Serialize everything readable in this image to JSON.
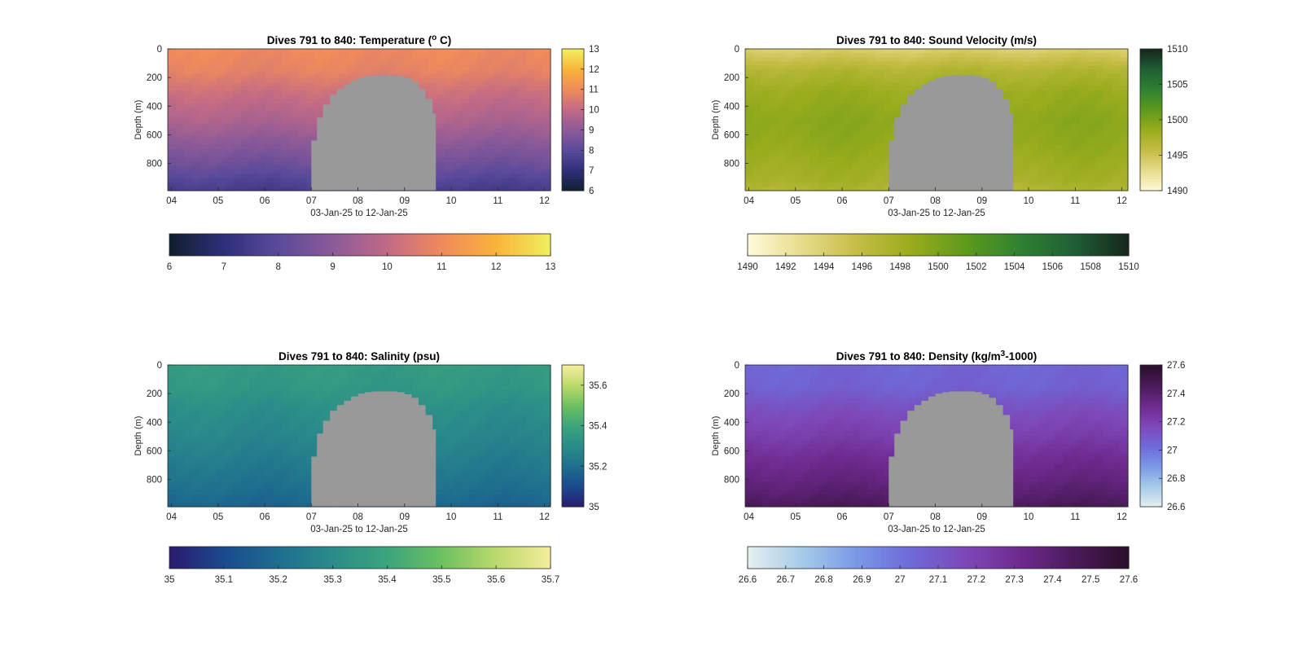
{
  "figure": {
    "background": "#ffffff",
    "mask_color": "#999999"
  },
  "chart_data": [
    {
      "type": "heatmap",
      "title_pre": "Dives 791 to 840: Temperature (",
      "title_sup": "o",
      "title_post": " C)",
      "xlabel": "03-Jan-25 to 12-Jan-25",
      "ylabel": "Depth (m)",
      "x_ticks": [
        "04",
        "05",
        "06",
        "07",
        "08",
        "09",
        "10",
        "11",
        "12"
      ],
      "x_tick_values": [
        4,
        5,
        6,
        7,
        8,
        9,
        10,
        11,
        12
      ],
      "xlim": [
        3.92,
        12.13
      ],
      "y_ticks": [
        "0",
        "200",
        "400",
        "600",
        "800"
      ],
      "y_tick_values": [
        0,
        200,
        400,
        600,
        800
      ],
      "ylim": [
        0,
        990
      ],
      "colorbar": {
        "colors": [
          "#0f1f2e",
          "#2f2f7a",
          "#5a4a9a",
          "#8c5a98",
          "#c16a86",
          "#ef8a5c",
          "#f9b33a",
          "#f0f060"
        ],
        "range": [
          6,
          13
        ],
        "vertical_ticks": [
          "6",
          "7",
          "8",
          "9",
          "10",
          "11",
          "12",
          "13"
        ],
        "vertical_values": [
          6,
          7,
          8,
          9,
          10,
          11,
          12,
          13
        ],
        "horizontal_ticks": [
          "6",
          "7",
          "8",
          "9",
          "10",
          "11",
          "12",
          "13"
        ],
        "horizontal_values": [
          6,
          7,
          8,
          9,
          10,
          11,
          12,
          13
        ]
      },
      "profile": {
        "depths": [
          0,
          150,
          300,
          500,
          650,
          800,
          920,
          990
        ],
        "values": [
          11.0,
          10.8,
          10.2,
          9.6,
          9.0,
          8.4,
          7.8,
          7.5
        ]
      },
      "no_data_region": {
        "x": [
          7.0,
          7.12,
          7.25,
          7.4,
          7.55,
          7.7,
          7.85,
          8.0,
          8.15,
          8.3,
          8.5,
          8.7,
          8.85,
          9.0,
          9.15,
          9.3,
          9.45,
          9.6,
          9.67
        ],
        "top_depth": [
          640,
          480,
          390,
          320,
          280,
          250,
          220,
          200,
          190,
          185,
          185,
          185,
          190,
          205,
          230,
          280,
          350,
          450,
          580
        ]
      }
    },
    {
      "type": "heatmap",
      "title_pre": "Dives 791 to 840: Sound Velocity (m/s)",
      "title_sup": "",
      "title_post": "",
      "xlabel": "03-Jan-25 to 12-Jan-25",
      "ylabel": "Depth (m)",
      "x_ticks": [
        "04",
        "05",
        "06",
        "07",
        "08",
        "09",
        "10",
        "11",
        "12"
      ],
      "x_tick_values": [
        4,
        5,
        6,
        7,
        8,
        9,
        10,
        11,
        12
      ],
      "xlim": [
        3.92,
        12.13
      ],
      "y_ticks": [
        "0",
        "200",
        "400",
        "600",
        "800"
      ],
      "y_tick_values": [
        0,
        200,
        400,
        600,
        800
      ],
      "ylim": [
        0,
        990
      ],
      "colorbar": {
        "colors": [
          "#fefbd8",
          "#e7dc8c",
          "#c5bd46",
          "#99ac1c",
          "#5e9a1c",
          "#2f8232",
          "#1f5f35",
          "#15261c"
        ],
        "range": [
          1490,
          1510
        ],
        "vertical_ticks": [
          "1490",
          "1495",
          "1500",
          "1505",
          "1510"
        ],
        "vertical_values": [
          1490,
          1495,
          1500,
          1505,
          1510
        ],
        "horizontal_ticks": [
          "1490",
          "1492",
          "1494",
          "1496",
          "1498",
          "1500",
          "1502",
          "1504",
          "1506",
          "1508",
          "1510"
        ],
        "horizontal_values": [
          1490,
          1492,
          1494,
          1496,
          1498,
          1500,
          1502,
          1504,
          1506,
          1508,
          1510
        ]
      },
      "profile": {
        "depths": [
          0,
          150,
          300,
          500,
          650,
          800,
          920,
          990
        ],
        "values": [
          1494.0,
          1497.0,
          1498.5,
          1499.3,
          1499.0,
          1498.3,
          1497.8,
          1497.0
        ]
      },
      "no_data_region": {
        "x": [
          7.0,
          7.12,
          7.25,
          7.4,
          7.55,
          7.7,
          7.85,
          8.0,
          8.15,
          8.3,
          8.5,
          8.7,
          8.85,
          9.0,
          9.15,
          9.3,
          9.45,
          9.6,
          9.67
        ],
        "top_depth": [
          640,
          480,
          390,
          320,
          280,
          250,
          220,
          200,
          190,
          185,
          185,
          185,
          190,
          205,
          230,
          280,
          350,
          450,
          580
        ]
      }
    },
    {
      "type": "heatmap",
      "title_pre": "Dives 791 to 840: Salinity (psu)",
      "title_sup": "",
      "title_post": "",
      "xlabel": "03-Jan-25 to 12-Jan-25",
      "ylabel": "Depth (m)",
      "x_ticks": [
        "04",
        "05",
        "06",
        "07",
        "08",
        "09",
        "10",
        "11",
        "12"
      ],
      "x_tick_values": [
        4,
        5,
        6,
        7,
        8,
        9,
        10,
        11,
        12
      ],
      "xlim": [
        3.92,
        12.13
      ],
      "y_ticks": [
        "0",
        "200",
        "400",
        "600",
        "800"
      ],
      "y_tick_values": [
        0,
        200,
        400,
        600,
        800
      ],
      "ylim": [
        0,
        990
      ],
      "colorbar": {
        "colors": [
          "#2a1b6e",
          "#1a4a8e",
          "#1e6e8e",
          "#2a8c8a",
          "#3aa47c",
          "#6cc060",
          "#bbd96a",
          "#f4ee9c"
        ],
        "range": [
          35,
          35.7
        ],
        "vertical_ticks": [
          "35",
          "35.2",
          "35.4",
          "35.6"
        ],
        "vertical_values": [
          35,
          35.2,
          35.4,
          35.6
        ],
        "horizontal_ticks": [
          "35",
          "35.1",
          "35.2",
          "35.3",
          "35.4",
          "35.5",
          "35.6",
          "35.7"
        ],
        "horizontal_values": [
          35,
          35.1,
          35.2,
          35.3,
          35.4,
          35.5,
          35.6,
          35.7
        ]
      },
      "profile": {
        "depths": [
          0,
          150,
          300,
          500,
          650,
          800,
          920,
          990
        ],
        "values": [
          35.36,
          35.35,
          35.31,
          35.28,
          35.25,
          35.22,
          35.19,
          35.17
        ]
      },
      "no_data_region": {
        "x": [
          7.0,
          7.12,
          7.25,
          7.4,
          7.55,
          7.7,
          7.85,
          8.0,
          8.15,
          8.3,
          8.5,
          8.7,
          8.85,
          9.0,
          9.15,
          9.3,
          9.45,
          9.6,
          9.67
        ],
        "top_depth": [
          640,
          480,
          390,
          320,
          280,
          250,
          220,
          200,
          190,
          185,
          185,
          185,
          190,
          205,
          230,
          280,
          350,
          450,
          580
        ]
      }
    },
    {
      "type": "heatmap",
      "title_pre": "Dives 791 to 840: Density (kg/m",
      "title_sup": "3",
      "title_post": "-1000)",
      "xlabel": "03-Jan-25 to 12-Jan-25",
      "ylabel": "Depth (m)",
      "x_ticks": [
        "04",
        "05",
        "06",
        "07",
        "08",
        "09",
        "10",
        "11",
        "12"
      ],
      "x_tick_values": [
        4,
        5,
        6,
        7,
        8,
        9,
        10,
        11,
        12
      ],
      "xlim": [
        3.92,
        12.13
      ],
      "y_ticks": [
        "0",
        "200",
        "400",
        "600",
        "800"
      ],
      "y_tick_values": [
        0,
        200,
        400,
        600,
        800
      ],
      "ylim": [
        0,
        990
      ],
      "colorbar": {
        "colors": [
          "#e6f0f0",
          "#a6cbe8",
          "#7a98e6",
          "#6e6ad8",
          "#7e48b8",
          "#6e2a8e",
          "#4a1a5a",
          "#2a0f2a"
        ],
        "range": [
          26.6,
          27.6
        ],
        "vertical_ticks": [
          "26.6",
          "26.8",
          "27",
          "27.2",
          "27.4",
          "27.6"
        ],
        "vertical_values": [
          26.6,
          26.8,
          27.0,
          27.2,
          27.4,
          27.6
        ],
        "horizontal_ticks": [
          "26.6",
          "26.7",
          "26.8",
          "26.9",
          "27",
          "27.1",
          "27.2",
          "27.3",
          "27.4",
          "27.5",
          "27.6"
        ],
        "horizontal_values": [
          26.6,
          26.7,
          26.8,
          26.9,
          27.0,
          27.1,
          27.2,
          27.3,
          27.4,
          27.5,
          27.6
        ]
      },
      "profile": {
        "depths": [
          0,
          150,
          300,
          500,
          650,
          800,
          920,
          990
        ],
        "values": [
          27.05,
          27.06,
          27.14,
          27.22,
          27.3,
          27.36,
          27.42,
          27.46
        ]
      },
      "no_data_region": {
        "x": [
          7.0,
          7.12,
          7.25,
          7.4,
          7.55,
          7.7,
          7.85,
          8.0,
          8.15,
          8.3,
          8.5,
          8.7,
          8.85,
          9.0,
          9.15,
          9.3,
          9.45,
          9.6,
          9.67
        ],
        "top_depth": [
          640,
          480,
          390,
          320,
          280,
          250,
          220,
          200,
          190,
          185,
          185,
          185,
          190,
          205,
          230,
          280,
          350,
          450,
          580
        ]
      }
    }
  ]
}
